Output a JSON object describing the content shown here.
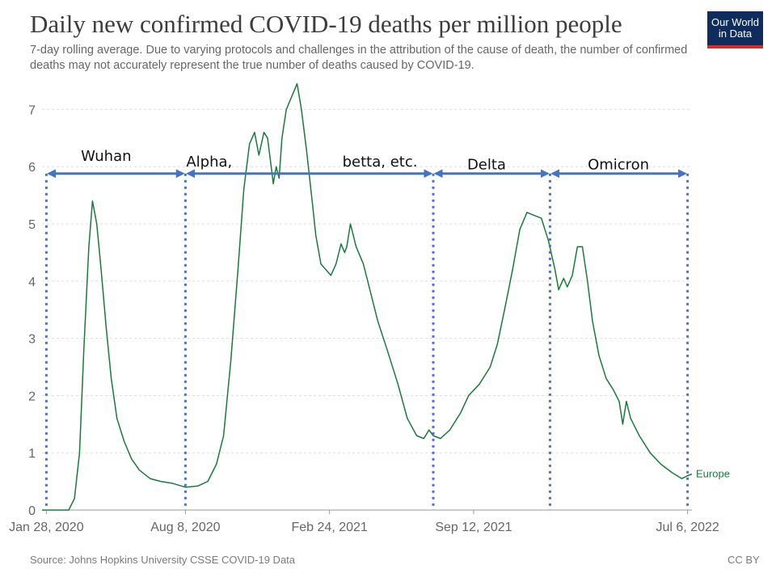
{
  "header": {
    "title": "Daily new confirmed COVID-19 deaths per million people",
    "subtitle": "7-day rolling average. Due to varying protocols and challenges in the attribution of the cause of death, the number of confirmed deaths may not accurately represent the true number of deaths caused by COVID-19."
  },
  "logo": {
    "line1": "Our World",
    "line2": "in Data"
  },
  "footer": {
    "source": "Source: Johns Hopkins University CSSE COVID-19 Data",
    "license": "CC BY"
  },
  "colors": {
    "line": "#1a7a3a",
    "annotation": "#4472c4",
    "grid": "#dddddd",
    "logo_bg": "#0f2d5c",
    "logo_bar": "#d42b2b"
  },
  "chart_data": {
    "type": "line",
    "title": "Daily new confirmed COVID-19 deaths per million people",
    "xlabel": "",
    "ylabel": "",
    "ylim": [
      0,
      7.5
    ],
    "xlim": [
      "2020-01-22",
      "2022-07-12"
    ],
    "grid": "horizontal dashed",
    "x_ticks": [
      {
        "date": "2020-01-28",
        "label": "Jan 28, 2020"
      },
      {
        "date": "2020-08-08",
        "label": "Aug 8, 2020"
      },
      {
        "date": "2021-02-24",
        "label": "Feb 24, 2021"
      },
      {
        "date": "2021-09-12",
        "label": "Sep 12, 2021"
      },
      {
        "date": "2022-07-06",
        "label": "Jul 6, 2022"
      }
    ],
    "y_ticks": [
      0,
      1,
      2,
      3,
      4,
      5,
      6,
      7
    ],
    "series": [
      {
        "name": "Europe",
        "points": [
          [
            "2020-01-22",
            0
          ],
          [
            "2020-02-28",
            0
          ],
          [
            "2020-03-07",
            0.2
          ],
          [
            "2020-03-14",
            1.0
          ],
          [
            "2020-03-20",
            2.8
          ],
          [
            "2020-03-27",
            4.6
          ],
          [
            "2020-04-01",
            5.4
          ],
          [
            "2020-04-07",
            5.0
          ],
          [
            "2020-04-13",
            4.2
          ],
          [
            "2020-04-20",
            3.2
          ],
          [
            "2020-04-27",
            2.3
          ],
          [
            "2020-05-05",
            1.6
          ],
          [
            "2020-05-15",
            1.2
          ],
          [
            "2020-05-25",
            0.9
          ],
          [
            "2020-06-05",
            0.7
          ],
          [
            "2020-06-20",
            0.55
          ],
          [
            "2020-07-05",
            0.5
          ],
          [
            "2020-07-20",
            0.47
          ],
          [
            "2020-08-08",
            0.4
          ],
          [
            "2020-08-25",
            0.42
          ],
          [
            "2020-09-08",
            0.5
          ],
          [
            "2020-09-20",
            0.8
          ],
          [
            "2020-09-30",
            1.3
          ],
          [
            "2020-10-10",
            2.6
          ],
          [
            "2020-10-20",
            4.2
          ],
          [
            "2020-10-28",
            5.6
          ],
          [
            "2020-11-05",
            6.4
          ],
          [
            "2020-11-12",
            6.6
          ],
          [
            "2020-11-18",
            6.2
          ],
          [
            "2020-11-25",
            6.6
          ],
          [
            "2020-11-30",
            6.5
          ],
          [
            "2020-12-05",
            6.0
          ],
          [
            "2020-12-08",
            5.7
          ],
          [
            "2020-12-12",
            6.0
          ],
          [
            "2020-12-16",
            5.8
          ],
          [
            "2020-12-20",
            6.5
          ],
          [
            "2020-12-26",
            7.0
          ],
          [
            "2021-01-05",
            7.3
          ],
          [
            "2021-01-10",
            7.45
          ],
          [
            "2021-01-16",
            7.0
          ],
          [
            "2021-01-23",
            6.3
          ],
          [
            "2021-01-30",
            5.5
          ],
          [
            "2021-02-05",
            4.8
          ],
          [
            "2021-02-12",
            4.3
          ],
          [
            "2021-02-19",
            4.2
          ],
          [
            "2021-02-26",
            4.1
          ],
          [
            "2021-03-05",
            4.3
          ],
          [
            "2021-03-12",
            4.65
          ],
          [
            "2021-03-17",
            4.5
          ],
          [
            "2021-03-20",
            4.6
          ],
          [
            "2021-03-25",
            5.0
          ],
          [
            "2021-04-02",
            4.6
          ],
          [
            "2021-04-12",
            4.3
          ],
          [
            "2021-04-22",
            3.8
          ],
          [
            "2021-05-02",
            3.3
          ],
          [
            "2021-05-15",
            2.8
          ],
          [
            "2021-05-30",
            2.2
          ],
          [
            "2021-06-12",
            1.6
          ],
          [
            "2021-06-25",
            1.3
          ],
          [
            "2021-07-05",
            1.25
          ],
          [
            "2021-07-12",
            1.4
          ],
          [
            "2021-07-18",
            1.3
          ],
          [
            "2021-07-28",
            1.25
          ],
          [
            "2021-08-10",
            1.4
          ],
          [
            "2021-08-25",
            1.7
          ],
          [
            "2021-09-05",
            2.0
          ],
          [
            "2021-09-20",
            2.2
          ],
          [
            "2021-10-05",
            2.5
          ],
          [
            "2021-10-15",
            2.9
          ],
          [
            "2021-10-25",
            3.5
          ],
          [
            "2021-11-05",
            4.2
          ],
          [
            "2021-11-15",
            4.9
          ],
          [
            "2021-11-25",
            5.2
          ],
          [
            "2021-12-05",
            5.15
          ],
          [
            "2021-12-15",
            5.1
          ],
          [
            "2021-12-25",
            4.7
          ],
          [
            "2022-01-03",
            4.2
          ],
          [
            "2022-01-08",
            3.85
          ],
          [
            "2022-01-15",
            4.05
          ],
          [
            "2022-01-20",
            3.9
          ],
          [
            "2022-01-27",
            4.1
          ],
          [
            "2022-02-03",
            4.6
          ],
          [
            "2022-02-10",
            4.6
          ],
          [
            "2022-02-17",
            4.0
          ],
          [
            "2022-02-24",
            3.3
          ],
          [
            "2022-03-05",
            2.7
          ],
          [
            "2022-03-15",
            2.3
          ],
          [
            "2022-03-25",
            2.1
          ],
          [
            "2022-04-02",
            1.9
          ],
          [
            "2022-04-07",
            1.5
          ],
          [
            "2022-04-12",
            1.9
          ],
          [
            "2022-04-18",
            1.6
          ],
          [
            "2022-04-30",
            1.3
          ],
          [
            "2022-05-15",
            1.0
          ],
          [
            "2022-05-30",
            0.8
          ],
          [
            "2022-06-15",
            0.65
          ],
          [
            "2022-06-28",
            0.55
          ],
          [
            "2022-07-06",
            0.6
          ],
          [
            "2022-07-12",
            0.63
          ]
        ]
      }
    ],
    "annotations": {
      "dividers": [
        "2020-01-28",
        "2020-08-08",
        "2021-07-18",
        "2021-12-27",
        "2022-07-06"
      ],
      "arrows": [
        {
          "from": "2020-01-28",
          "to": "2020-08-08"
        },
        {
          "from": "2020-08-08",
          "to": "2021-07-18"
        },
        {
          "from": "2021-07-18",
          "to": "2021-12-27"
        },
        {
          "from": "2021-12-27",
          "to": "2022-07-06"
        }
      ],
      "arrow_level": 5.88,
      "labels": [
        {
          "text": "Wuhan",
          "x": "2020-04-20",
          "y": 6.1
        },
        {
          "text": "Alpha,",
          "x": "2020-09-10",
          "y": 6.0
        },
        {
          "text": "betta, etc.",
          "x": "2021-05-05",
          "y": 6.0
        },
        {
          "text": "Delta",
          "x": "2021-09-30",
          "y": 5.95
        },
        {
          "text": "Omicron",
          "x": "2022-04-01",
          "y": 5.95
        }
      ]
    }
  }
}
